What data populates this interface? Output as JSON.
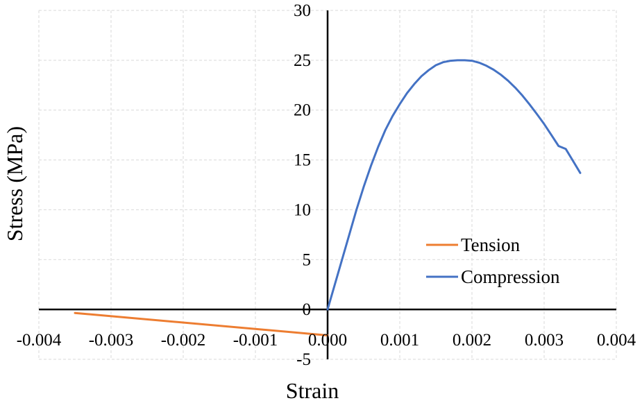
{
  "chart_data": {
    "type": "line",
    "title": "",
    "xlabel": "Strain",
    "ylabel": "Stress (MPa)",
    "xlim": [
      -0.004,
      0.004
    ],
    "ylim": [
      -5,
      30
    ],
    "x_ticks": [
      -0.004,
      -0.003,
      -0.002,
      -0.001,
      0.0,
      0.001,
      0.002,
      0.003,
      0.004
    ],
    "x_tick_labels": [
      "-0.004",
      "-0.003",
      "-0.002",
      "-0.001",
      "0.000",
      "0.001",
      "0.002",
      "0.003",
      "0.004"
    ],
    "y_ticks": [
      -5,
      0,
      5,
      10,
      15,
      20,
      25,
      30
    ],
    "y_tick_labels": [
      "-5",
      "0",
      "5",
      "10",
      "15",
      "20",
      "25",
      "30"
    ],
    "grid": true,
    "legend_position": "right-middle",
    "series": [
      {
        "name": "Tension",
        "color": "#ED7D31",
        "x": [
          -0.0035,
          0.0
        ],
        "y": [
          -0.35,
          -2.6
        ]
      },
      {
        "name": "Compression",
        "color": "#4472C4",
        "x": [
          0.0,
          0.0001,
          0.0002,
          0.0003,
          0.0004,
          0.0005,
          0.0006,
          0.0007,
          0.0008,
          0.0009,
          0.001,
          0.0011,
          0.0012,
          0.0013,
          0.0014,
          0.0015,
          0.0016,
          0.0017,
          0.0018,
          0.0019,
          0.002,
          0.0021,
          0.0022,
          0.0023,
          0.0024,
          0.0025,
          0.0026,
          0.0027,
          0.0028,
          0.0029,
          0.003,
          0.0031,
          0.0032,
          0.0033,
          0.0034,
          0.0035
        ],
        "y": [
          0.0,
          2.5,
          5.0,
          7.5,
          10.0,
          12.3,
          14.4,
          16.3,
          18.0,
          19.4,
          20.6,
          21.7,
          22.6,
          23.4,
          24.0,
          24.5,
          24.8,
          24.95,
          25.0,
          25.0,
          24.95,
          24.75,
          24.45,
          24.05,
          23.55,
          22.95,
          22.25,
          21.45,
          20.55,
          19.6,
          18.6,
          17.5,
          16.4,
          16.1,
          14.9,
          13.7
        ]
      }
    ]
  }
}
